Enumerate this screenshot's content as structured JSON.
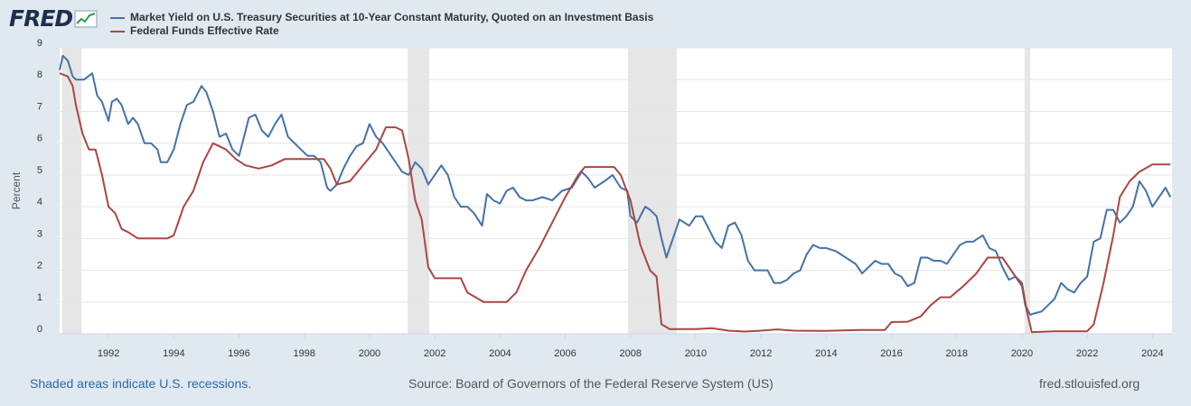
{
  "header": {
    "logo_text": "FRED",
    "logo_icon": "chart-line-icon"
  },
  "legend": [
    {
      "label": "Market Yield on U.S. Treasury Securities at 10-Year Constant Maturity, Quoted on an Investment Basis",
      "color": "#4572a7"
    },
    {
      "label": "Federal Funds Effective Rate",
      "color": "#aa4643"
    }
  ],
  "footer": {
    "note": "Shaded areas indicate U.S. recessions.",
    "source": "Source: Board of Governors of the Federal Reserve System (US)",
    "site": "fred.stlouisfed.org"
  },
  "chart_data": {
    "type": "line",
    "title": "",
    "xlabel": "",
    "ylabel": "Percent",
    "xlim": [
      1990.5,
      2024.6
    ],
    "ylim": [
      0,
      9
    ],
    "yticks": [
      0,
      1,
      2,
      3,
      4,
      5,
      6,
      7,
      8,
      9
    ],
    "xticks": [
      1992,
      1994,
      1996,
      1998,
      2000,
      2002,
      2004,
      2006,
      2008,
      2010,
      2012,
      2014,
      2016,
      2018,
      2020,
      2022,
      2024
    ],
    "grid": true,
    "legend_position": "top-left",
    "recessions": [
      [
        1990.58,
        1991.17
      ],
      [
        2001.17,
        2001.83
      ],
      [
        2007.92,
        2009.42
      ],
      [
        2020.08,
        2020.25
      ]
    ],
    "series": [
      {
        "name": "Market Yield on U.S. Treasury Securities at 10-Year Constant Maturity, Quoted on an Investment Basis",
        "color": "#4572a7",
        "x": [
          1990.5,
          1990.6,
          1990.75,
          1990.9,
          1991.0,
          1991.25,
          1991.5,
          1991.65,
          1991.8,
          1992.0,
          1992.1,
          1992.25,
          1992.4,
          1992.6,
          1992.75,
          1992.9,
          1993.1,
          1993.3,
          1993.5,
          1993.6,
          1993.8,
          1994.0,
          1994.2,
          1994.4,
          1994.6,
          1994.85,
          1995.0,
          1995.2,
          1995.4,
          1995.6,
          1995.8,
          1996.0,
          1996.1,
          1996.3,
          1996.5,
          1996.7,
          1996.9,
          1997.1,
          1997.3,
          1997.5,
          1997.7,
          1997.9,
          1998.1,
          1998.3,
          1998.5,
          1998.7,
          1998.8,
          1999.0,
          1999.2,
          1999.4,
          1999.6,
          1999.8,
          2000.0,
          2000.2,
          2000.4,
          2000.6,
          2000.8,
          2001.0,
          2001.2,
          2001.4,
          2001.6,
          2001.8,
          2002.0,
          2002.2,
          2002.4,
          2002.6,
          2002.8,
          2003.0,
          2003.2,
          2003.45,
          2003.6,
          2003.8,
          2004.0,
          2004.2,
          2004.4,
          2004.6,
          2004.8,
          2005.0,
          2005.3,
          2005.6,
          2005.9,
          2006.2,
          2006.5,
          2006.7,
          2006.9,
          2007.2,
          2007.45,
          2007.7,
          2007.9,
          2008.0,
          2008.2,
          2008.45,
          2008.6,
          2008.8,
          2008.95,
          2009.1,
          2009.3,
          2009.5,
          2009.8,
          2010.0,
          2010.2,
          2010.4,
          2010.6,
          2010.8,
          2011.0,
          2011.2,
          2011.4,
          2011.6,
          2011.8,
          2012.0,
          2012.2,
          2012.4,
          2012.6,
          2012.8,
          2013.0,
          2013.2,
          2013.4,
          2013.6,
          2013.8,
          2014.0,
          2014.3,
          2014.6,
          2014.9,
          2015.1,
          2015.3,
          2015.5,
          2015.7,
          2015.9,
          2016.1,
          2016.3,
          2016.5,
          2016.7,
          2016.9,
          2017.1,
          2017.3,
          2017.5,
          2017.7,
          2017.9,
          2018.1,
          2018.3,
          2018.5,
          2018.8,
          2019.0,
          2019.2,
          2019.4,
          2019.6,
          2019.8,
          2020.0,
          2020.1,
          2020.25,
          2020.4,
          2020.6,
          2020.8,
          2021.0,
          2021.2,
          2021.4,
          2021.6,
          2021.8,
          2022.0,
          2022.2,
          2022.4,
          2022.6,
          2022.8,
          2023.0,
          2023.2,
          2023.4,
          2023.6,
          2023.8,
          2024.0,
          2024.2,
          2024.4,
          2024.55
        ],
        "values": [
          8.3,
          8.75,
          8.6,
          8.1,
          8.0,
          8.0,
          8.2,
          7.5,
          7.3,
          6.7,
          7.3,
          7.4,
          7.2,
          6.6,
          6.8,
          6.6,
          6.0,
          6.0,
          5.8,
          5.4,
          5.4,
          5.8,
          6.6,
          7.2,
          7.3,
          7.8,
          7.6,
          7.0,
          6.2,
          6.3,
          5.8,
          5.6,
          6.0,
          6.8,
          6.9,
          6.4,
          6.2,
          6.6,
          6.9,
          6.2,
          6.0,
          5.8,
          5.6,
          5.6,
          5.4,
          4.6,
          4.5,
          4.7,
          5.2,
          5.6,
          5.9,
          6.0,
          6.6,
          6.2,
          6.0,
          5.7,
          5.4,
          5.1,
          5.0,
          5.4,
          5.2,
          4.7,
          5.0,
          5.3,
          5.0,
          4.3,
          4.0,
          4.0,
          3.8,
          3.4,
          4.4,
          4.2,
          4.1,
          4.5,
          4.6,
          4.3,
          4.2,
          4.2,
          4.3,
          4.2,
          4.5,
          4.6,
          5.1,
          4.9,
          4.6,
          4.8,
          5.0,
          4.6,
          4.5,
          3.7,
          3.5,
          4.0,
          3.9,
          3.7,
          3.0,
          2.4,
          3.0,
          3.6,
          3.4,
          3.7,
          3.7,
          3.3,
          2.9,
          2.7,
          3.4,
          3.5,
          3.1,
          2.3,
          2.0,
          2.0,
          2.0,
          1.6,
          1.6,
          1.7,
          1.9,
          2.0,
          2.5,
          2.8,
          2.7,
          2.7,
          2.6,
          2.4,
          2.2,
          1.9,
          2.1,
          2.3,
          2.2,
          2.2,
          1.9,
          1.8,
          1.5,
          1.6,
          2.4,
          2.4,
          2.3,
          2.3,
          2.2,
          2.5,
          2.8,
          2.9,
          2.9,
          3.1,
          2.7,
          2.6,
          2.1,
          1.7,
          1.8,
          1.5,
          0.9,
          0.6,
          0.65,
          0.7,
          0.9,
          1.1,
          1.6,
          1.4,
          1.3,
          1.6,
          1.8,
          2.9,
          3.0,
          3.9,
          3.9,
          3.5,
          3.7,
          4.0,
          4.8,
          4.5,
          4.0,
          4.3,
          4.6,
          4.3
        ]
      },
      {
        "name": "Federal Funds Effective Rate",
        "color": "#aa4643",
        "x": [
          1990.5,
          1990.75,
          1990.9,
          1991.0,
          1991.2,
          1991.4,
          1991.6,
          1991.8,
          1992.0,
          1992.2,
          1992.4,
          1992.6,
          1992.9,
          1993.3,
          1993.8,
          1994.0,
          1994.3,
          1994.6,
          1994.9,
          1995.2,
          1995.6,
          1995.9,
          1996.2,
          1996.6,
          1997.0,
          1997.4,
          1997.8,
          1998.2,
          1998.6,
          1998.8,
          1999.0,
          1999.4,
          1999.8,
          2000.2,
          2000.5,
          2000.8,
          2001.0,
          2001.2,
          2001.4,
          2001.6,
          2001.8,
          2002.0,
          2002.3,
          2002.8,
          2003.0,
          2003.5,
          2003.8,
          2004.2,
          2004.5,
          2004.8,
          2005.2,
          2005.6,
          2006.0,
          2006.4,
          2006.6,
          2007.0,
          2007.5,
          2007.7,
          2008.0,
          2008.3,
          2008.6,
          2008.8,
          2008.95,
          2009.2,
          2009.6,
          2010.0,
          2010.5,
          2011.0,
          2011.5,
          2012.0,
          2012.5,
          2013.0,
          2014.0,
          2015.0,
          2015.8,
          2016.0,
          2016.5,
          2016.9,
          2017.2,
          2017.5,
          2017.8,
          2018.2,
          2018.6,
          2018.95,
          2019.4,
          2019.6,
          2019.8,
          2020.0,
          2020.15,
          2020.3,
          2021.0,
          2022.0,
          2022.2,
          2022.5,
          2022.8,
          2023.0,
          2023.3,
          2023.6,
          2024.0,
          2024.55
        ],
        "values": [
          8.2,
          8.1,
          7.8,
          7.2,
          6.3,
          5.8,
          5.8,
          5.0,
          4.0,
          3.8,
          3.3,
          3.2,
          3.0,
          3.0,
          3.0,
          3.1,
          4.0,
          4.5,
          5.4,
          6.0,
          5.8,
          5.5,
          5.3,
          5.2,
          5.3,
          5.5,
          5.5,
          5.5,
          5.5,
          5.2,
          4.7,
          4.8,
          5.3,
          5.8,
          6.5,
          6.5,
          6.4,
          5.5,
          4.2,
          3.6,
          2.1,
          1.75,
          1.75,
          1.75,
          1.3,
          1.0,
          1.0,
          1.0,
          1.3,
          2.0,
          2.7,
          3.5,
          4.3,
          5.0,
          5.25,
          5.25,
          5.25,
          5.0,
          4.2,
          2.8,
          2.0,
          1.8,
          0.3,
          0.15,
          0.15,
          0.15,
          0.18,
          0.1,
          0.07,
          0.1,
          0.14,
          0.1,
          0.09,
          0.12,
          0.12,
          0.37,
          0.38,
          0.55,
          0.9,
          1.15,
          1.15,
          1.5,
          1.9,
          2.4,
          2.4,
          2.1,
          1.8,
          1.6,
          0.7,
          0.05,
          0.08,
          0.08,
          0.3,
          1.6,
          3.1,
          4.3,
          4.8,
          5.1,
          5.33,
          5.33
        ]
      }
    ]
  }
}
